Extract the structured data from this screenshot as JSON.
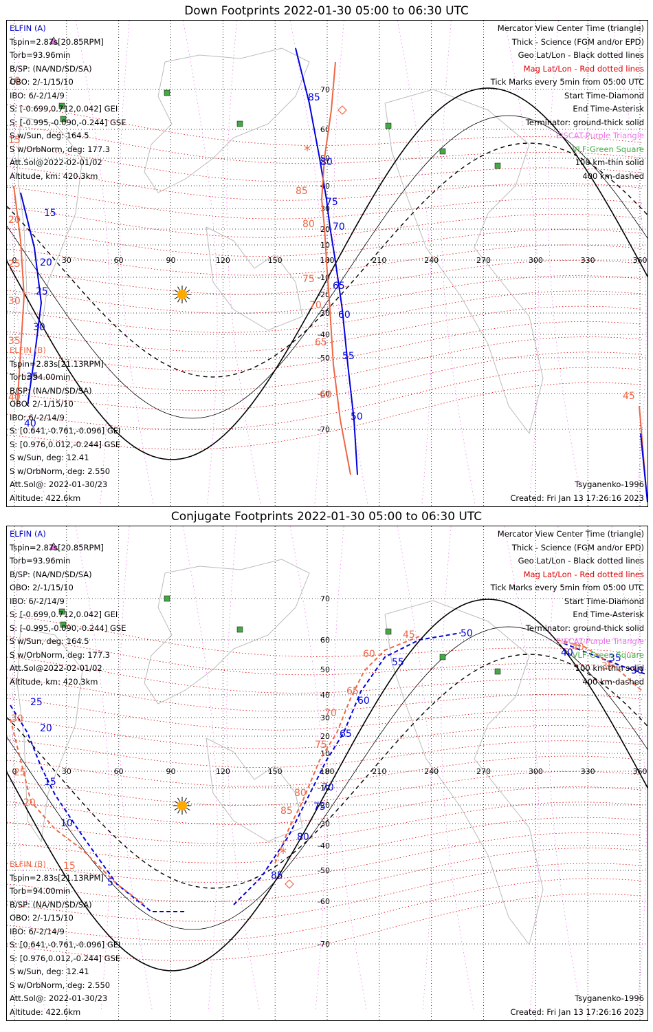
{
  "colors": {
    "blue": "#0000dd",
    "orange": "#ee6644",
    "red_dot": "#dd0000",
    "pink": "#ee77ee",
    "green": "#44aa44",
    "sun": "#ffaa00",
    "coast": "#bbbbbb"
  },
  "panels": [
    {
      "title": "Down Footprints 2022-01-30 05:00 to 06:30 UTC",
      "elfin_a": {
        "head": "ELFIN (A)",
        "lines": [
          "Tspin=2.87s[20.85RPM]",
          "Torb=93.96min",
          "B/SP: (NA/ND/SD/SA)",
          "OBO: 2/-1/15/10",
          "IBO: 6/-2/14/9",
          "S: [-0.699,0.712,0.042] GEI",
          "S: [-0.995,-0.090,-0.244] GSE",
          "S w/Sun, deg: 164.5",
          "S w/OrbNorm, deg: 177.3",
          "Att.Sol@2022-02-01/02",
          "Altitude, km: 420.3km"
        ]
      },
      "elfin_b": {
        "head": "ELFIN (B)",
        "lines": [
          "Tspin=2.83s[21.13RPM]",
          "Torb=94.00min",
          "B/SP: (NA/ND/SD/SA)",
          "OBO: 2/-1/15/10",
          "IBO: 6/-2/14/9",
          "S: [0.641,-0.761,-0.096] GEI",
          "S: [0.976,0.012,-0.244] GSE",
          "S w/Sun, deg: 12.41",
          "S w/OrbNorm, deg: 2.550",
          "Att.Sol@: 2022-01-30/23",
          "Altitude: 422.6km"
        ]
      },
      "legend": [
        {
          "text": "Mercator View Center Time (triangle)",
          "color": "#000000"
        },
        {
          "text": "Thick - Science (FGM and/or EPD)",
          "color": "#000000"
        },
        {
          "text": "Geo Lat/Lon - Black dotted lines",
          "color": "#000000"
        },
        {
          "text": "Mag Lat/Lon - Red dotted lines",
          "color": "#dd0000"
        },
        {
          "text": "Tick Marks every 5min from 05:00 UTC",
          "color": "#000000"
        },
        {
          "text": "Start Time-Diamond",
          "color": "#000000"
        },
        {
          "text": "End Time-Asterisk",
          "color": "#000000"
        },
        {
          "text": "Terminator: ground-thick solid",
          "color": "#000000"
        },
        {
          "text": "EISCAT-Purple Triangle",
          "color": "#ee77ee"
        },
        {
          "text": "VLF-Green Square",
          "color": "#44aa44"
        },
        {
          "text": "100 km-thin solid",
          "color": "#000000"
        },
        {
          "text": "400 km-dashed",
          "color": "#000000"
        }
      ],
      "model": "Tsyganenko-1996",
      "created": "Created: Fri Jan 13 17:26:16 2023",
      "lon_labels": [
        "0",
        "30",
        "60",
        "90",
        "120",
        "150",
        "180",
        "210",
        "240",
        "270",
        "300",
        "330",
        "360"
      ],
      "lat_labels": [
        "70",
        "60",
        "50",
        "40",
        "30",
        "20",
        "10",
        "0",
        "-10",
        "-20",
        "-30",
        "-40",
        "-50",
        "-60",
        "-70"
      ],
      "track_a_labels": [
        "85",
        "80",
        "75",
        "70",
        "65",
        "60",
        "55",
        "50",
        "15",
        "20",
        "25",
        "30",
        "35",
        "40"
      ],
      "track_b_labels": [
        "85",
        "80",
        "75",
        "70",
        "65",
        "60",
        "10",
        "15",
        "20",
        "25",
        "30",
        "35",
        "40",
        "45"
      ],
      "terminator_lat_min": -72
    },
    {
      "title": "Conjugate Footprints 2022-01-30 05:00 to 06:30 UTC",
      "elfin_a": {
        "head": "ELFIN (A)",
        "lines": [
          "Tspin=2.87s[20.85RPM]",
          "Torb=93.96min",
          "B/SP: (NA/ND/SD/SA)",
          "OBO: 2/-1/15/10",
          "IBO: 6/-2/14/9",
          "S: [-0.699,0.712,0.042] GEI",
          "S: [-0.995,-0.090,-0.244] GSE",
          "S w/Sun, deg: 164.5",
          "S w/OrbNorm, deg: 177.3",
          "Att.Sol@2022-02-01/02",
          "Altitude, km: 420.3km"
        ]
      },
      "elfin_b": {
        "head": "ELFIN (B)",
        "lines": [
          "Tspin=2.83s[21.13RPM]",
          "Torb=94.00min",
          "B/SP: (NA/ND/SD/SA)",
          "OBO: 2/-1/15/10",
          "IBO: 6/-2/14/9",
          "S: [0.641,-0.761,-0.096] GEI",
          "S: [0.976,0.012,-0.244] GSE",
          "S w/Sun, deg: 12.41",
          "S w/OrbNorm, deg: 2.550",
          "Att.Sol@: 2022-01-30/23",
          "Altitude: 422.6km"
        ]
      },
      "legend": [
        {
          "text": "Mercator View Center Time (triangle)",
          "color": "#000000"
        },
        {
          "text": "Thick - Science (FGM and/or EPD)",
          "color": "#000000"
        },
        {
          "text": "Geo Lat/Lon - Black dotted lines",
          "color": "#000000"
        },
        {
          "text": "Mag Lat/Lon - Red dotted lines",
          "color": "#dd0000"
        },
        {
          "text": "Tick Marks every 5min from 05:00 UTC",
          "color": "#000000"
        },
        {
          "text": "Start Time-Diamond",
          "color": "#000000"
        },
        {
          "text": "End Time-Asterisk",
          "color": "#000000"
        },
        {
          "text": "Terminator: ground-thick solid",
          "color": "#000000"
        },
        {
          "text": "EISCAT-Purple Triangle",
          "color": "#ee77ee"
        },
        {
          "text": "VLF-Green Square",
          "color": "#44aa44"
        },
        {
          "text": "100 km-thin solid",
          "color": "#000000"
        },
        {
          "text": "400 km-dashed",
          "color": "#000000"
        }
      ],
      "model": "Tsyganenko-1996",
      "created": "Created: Fri Jan 13 17:26:16 2023",
      "lon_labels": [
        "0",
        "30",
        "60",
        "90",
        "120",
        "150",
        "180",
        "210",
        "240",
        "270",
        "300",
        "330",
        "360"
      ],
      "lat_labels": [
        "70",
        "60",
        "50",
        "40",
        "30",
        "20",
        "10",
        "0",
        "-10",
        "-20",
        "-30",
        "-40",
        "-50",
        "-60",
        "-70"
      ],
      "track_a_labels": [
        "25",
        "20",
        "15",
        "10",
        "5",
        "85",
        "80",
        "75",
        "70",
        "65",
        "60",
        "55",
        "50",
        "40",
        "35",
        "30"
      ],
      "track_b_labels": [
        "30",
        "25",
        "20",
        "15",
        "85",
        "80",
        "75",
        "70",
        "65",
        "60",
        "45",
        "40",
        "35"
      ],
      "terminator_lat_min": -72
    }
  ]
}
